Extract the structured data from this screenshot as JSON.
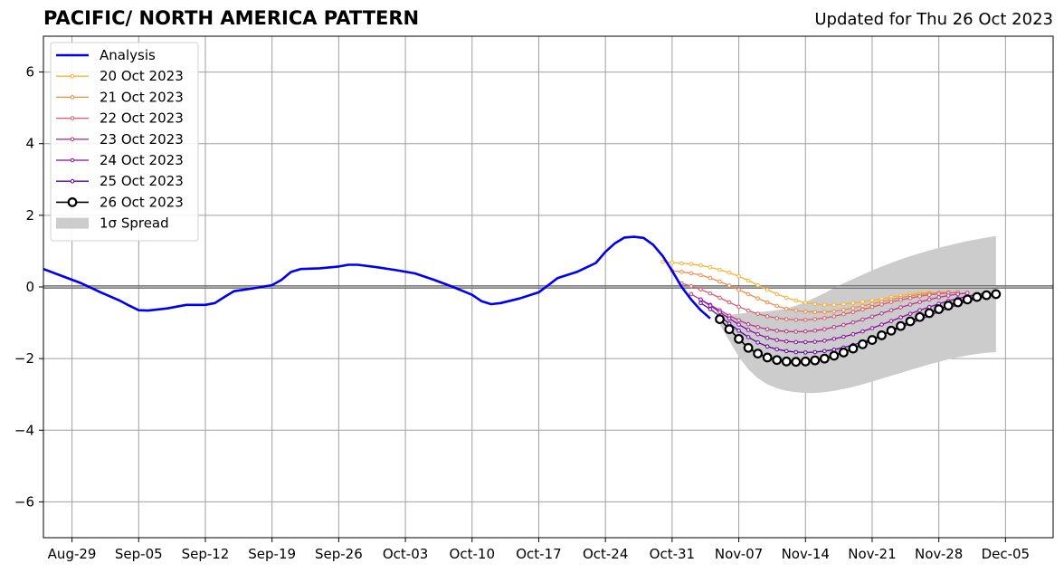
{
  "header": {
    "title": "PACIFIC/ NORTH AMERICA PATTERN",
    "updated": "Updated for Thu 26 Oct 2023"
  },
  "chart_data": {
    "type": "line",
    "title": "PACIFIC/ NORTH AMERICA PATTERN",
    "subtitle": "Updated for Thu 26 Oct 2023",
    "xlabel": "",
    "ylabel": "",
    "x_type": "date",
    "xlim": [
      "2023-08-26",
      "2023-12-10"
    ],
    "ylim": [
      -7,
      7
    ],
    "x_ticks": [
      {
        "date": "2023-08-29",
        "label": "Aug-29"
      },
      {
        "date": "2023-09-05",
        "label": "Sep-05"
      },
      {
        "date": "2023-09-12",
        "label": "Sep-12"
      },
      {
        "date": "2023-09-19",
        "label": "Sep-19"
      },
      {
        "date": "2023-09-26",
        "label": "Sep-26"
      },
      {
        "date": "2023-10-03",
        "label": "Oct-03"
      },
      {
        "date": "2023-10-10",
        "label": "Oct-10"
      },
      {
        "date": "2023-10-17",
        "label": "Oct-17"
      },
      {
        "date": "2023-10-24",
        "label": "Oct-24"
      },
      {
        "date": "2023-10-31",
        "label": "Oct-31"
      },
      {
        "date": "2023-11-07",
        "label": "Nov-07"
      },
      {
        "date": "2023-11-14",
        "label": "Nov-14"
      },
      {
        "date": "2023-11-21",
        "label": "Nov-21"
      },
      {
        "date": "2023-11-28",
        "label": "Nov-28"
      },
      {
        "date": "2023-12-05",
        "label": "Dec-05"
      }
    ],
    "y_ticks": [
      6,
      4,
      2,
      0,
      -2,
      -4,
      -6
    ],
    "y_tick_labels": [
      "6",
      "4",
      "2",
      "0",
      "−2",
      "−4",
      "−6"
    ],
    "grid": true,
    "legend_position": "top-left",
    "analysis": {
      "name": "Analysis",
      "color": "#0000ee",
      "points": [
        [
          "2023-08-26",
          0.5
        ],
        [
          "2023-08-28",
          0.3
        ],
        [
          "2023-08-30",
          0.1
        ],
        [
          "2023-09-01",
          -0.15
        ],
        [
          "2023-09-03",
          -0.38
        ],
        [
          "2023-09-04",
          -0.52
        ],
        [
          "2023-09-05",
          -0.65
        ],
        [
          "2023-09-06",
          -0.66
        ],
        [
          "2023-09-08",
          -0.6
        ],
        [
          "2023-09-10",
          -0.5
        ],
        [
          "2023-09-12",
          -0.5
        ],
        [
          "2023-09-13",
          -0.45
        ],
        [
          "2023-09-14",
          -0.28
        ],
        [
          "2023-09-15",
          -0.12
        ],
        [
          "2023-09-17",
          -0.04
        ],
        [
          "2023-09-19",
          0.05
        ],
        [
          "2023-09-20",
          0.2
        ],
        [
          "2023-09-21",
          0.42
        ],
        [
          "2023-09-22",
          0.5
        ],
        [
          "2023-09-24",
          0.52
        ],
        [
          "2023-09-26",
          0.57
        ],
        [
          "2023-09-27",
          0.62
        ],
        [
          "2023-09-28",
          0.62
        ],
        [
          "2023-09-30",
          0.55
        ],
        [
          "2023-10-02",
          0.47
        ],
        [
          "2023-10-04",
          0.38
        ],
        [
          "2023-10-06",
          0.2
        ],
        [
          "2023-10-08",
          0.0
        ],
        [
          "2023-10-10",
          -0.22
        ],
        [
          "2023-10-11",
          -0.4
        ],
        [
          "2023-10-12",
          -0.48
        ],
        [
          "2023-10-13",
          -0.45
        ],
        [
          "2023-10-15",
          -0.32
        ],
        [
          "2023-10-17",
          -0.15
        ],
        [
          "2023-10-18",
          0.05
        ],
        [
          "2023-10-19",
          0.25
        ],
        [
          "2023-10-21",
          0.42
        ],
        [
          "2023-10-23",
          0.67
        ],
        [
          "2023-10-24",
          0.98
        ],
        [
          "2023-10-25",
          1.22
        ],
        [
          "2023-10-26",
          1.38
        ],
        [
          "2023-10-27",
          1.4
        ],
        [
          "2023-10-28",
          1.37
        ],
        [
          "2023-10-29",
          1.18
        ],
        [
          "2023-10-30",
          0.87
        ],
        [
          "2023-10-31",
          0.45
        ],
        [
          "2023-11-01",
          0.0
        ],
        [
          "2023-11-02",
          -0.35
        ],
        [
          "2023-11-03",
          -0.65
        ],
        [
          "2023-11-04",
          -0.88
        ]
      ]
    },
    "forecasts": [
      {
        "name": "20 Oct 2023",
        "color": "#f9b233",
        "start": "2023-10-30",
        "values": [
          0.7,
          0.68,
          0.66,
          0.64,
          0.6,
          0.55,
          0.48,
          0.4,
          0.3,
          0.18,
          0.05,
          -0.08,
          -0.2,
          -0.3,
          -0.38,
          -0.44,
          -0.48,
          -0.5,
          -0.5,
          -0.48,
          -0.45,
          -0.41,
          -0.37,
          -0.33,
          -0.28,
          -0.24,
          -0.2,
          -0.17,
          -0.15
        ]
      },
      {
        "name": "21 Oct 2023",
        "color": "#ef8a47",
        "start": "2023-10-31",
        "values": [
          0.45,
          0.42,
          0.38,
          0.33,
          0.25,
          0.15,
          0.04,
          -0.08,
          -0.2,
          -0.32,
          -0.43,
          -0.53,
          -0.61,
          -0.66,
          -0.69,
          -0.7,
          -0.7,
          -0.68,
          -0.64,
          -0.59,
          -0.53,
          -0.47,
          -0.41,
          -0.35,
          -0.3,
          -0.25,
          -0.21,
          -0.18,
          -0.16,
          -0.15
        ]
      },
      {
        "name": "22 Oct 2023",
        "color": "#db5c68",
        "start": "2023-11-01",
        "values": [
          0.1,
          0.02,
          -0.07,
          -0.18,
          -0.3,
          -0.43,
          -0.55,
          -0.66,
          -0.75,
          -0.82,
          -0.87,
          -0.9,
          -0.92,
          -0.92,
          -0.9,
          -0.87,
          -0.82,
          -0.76,
          -0.7,
          -0.63,
          -0.56,
          -0.49,
          -0.42,
          -0.36,
          -0.31,
          -0.26,
          -0.22,
          -0.19,
          -0.17,
          -0.15
        ]
      },
      {
        "name": "23 Oct 2023",
        "color": "#b83289",
        "start": "2023-11-02",
        "values": [
          -0.2,
          -0.35,
          -0.5,
          -0.65,
          -0.8,
          -0.93,
          -1.04,
          -1.12,
          -1.18,
          -1.22,
          -1.24,
          -1.25,
          -1.24,
          -1.22,
          -1.18,
          -1.12,
          -1.06,
          -0.99,
          -0.91,
          -0.83,
          -0.74,
          -0.65,
          -0.57,
          -0.49,
          -0.42,
          -0.35,
          -0.29,
          -0.24,
          -0.2,
          -0.17
        ]
      },
      {
        "name": "24 Oct 2023",
        "color": "#8b0aa5",
        "start": "2023-11-03",
        "values": [
          -0.35,
          -0.52,
          -0.7,
          -0.88,
          -1.05,
          -1.2,
          -1.32,
          -1.42,
          -1.48,
          -1.52,
          -1.54,
          -1.54,
          -1.53,
          -1.5,
          -1.45,
          -1.39,
          -1.32,
          -1.24,
          -1.15,
          -1.05,
          -0.95,
          -0.85,
          -0.75,
          -0.65,
          -0.56,
          -0.47,
          -0.39,
          -0.32,
          -0.26,
          -0.21,
          -0.17
        ]
      },
      {
        "name": "25 Oct 2023",
        "color": "#5c01a6",
        "start": "2023-11-03",
        "values": [
          -0.45,
          -0.62,
          -0.82,
          -1.02,
          -1.22,
          -1.4,
          -1.55,
          -1.66,
          -1.74,
          -1.79,
          -1.82,
          -1.83,
          -1.82,
          -1.79,
          -1.75,
          -1.69,
          -1.62,
          -1.54,
          -1.45,
          -1.35,
          -1.24,
          -1.13,
          -1.02,
          -0.91,
          -0.8,
          -0.69,
          -0.59,
          -0.49,
          -0.4,
          -0.32,
          -0.25,
          -0.2
        ]
      }
    ],
    "latest": {
      "name": "26 Oct 2023",
      "color": "#000000",
      "start": "2023-11-05",
      "values": [
        -0.9,
        -1.18,
        -1.45,
        -1.7,
        -1.86,
        -1.97,
        -2.04,
        -2.08,
        -2.09,
        -2.08,
        -2.05,
        -2.0,
        -1.92,
        -1.83,
        -1.72,
        -1.6,
        -1.48,
        -1.35,
        -1.22,
        -1.09,
        -0.96,
        -0.84,
        -0.73,
        -0.62,
        -0.52,
        -0.43,
        -0.35,
        -0.28,
        -0.23,
        -0.2
      ]
    },
    "spread": {
      "name": "1σ Spread",
      "color": "#cccccc",
      "start": "2023-11-05",
      "upper": [
        -0.8,
        -0.78,
        -0.75,
        -0.72,
        -0.7,
        -0.68,
        -0.65,
        -0.6,
        -0.52,
        -0.42,
        -0.3,
        -0.17,
        -0.03,
        0.1,
        0.22,
        0.34,
        0.46,
        0.57,
        0.67,
        0.77,
        0.86,
        0.94,
        1.02,
        1.09,
        1.16,
        1.22,
        1.28,
        1.33,
        1.38,
        1.42
      ],
      "lower": [
        -1.05,
        -1.5,
        -1.95,
        -2.3,
        -2.55,
        -2.72,
        -2.83,
        -2.9,
        -2.94,
        -2.96,
        -2.96,
        -2.94,
        -2.9,
        -2.85,
        -2.79,
        -2.72,
        -2.64,
        -2.56,
        -2.48,
        -2.4,
        -2.32,
        -2.24,
        -2.16,
        -2.09,
        -2.02,
        -1.96,
        -1.91,
        -1.87,
        -1.84,
        -1.82
      ]
    }
  }
}
